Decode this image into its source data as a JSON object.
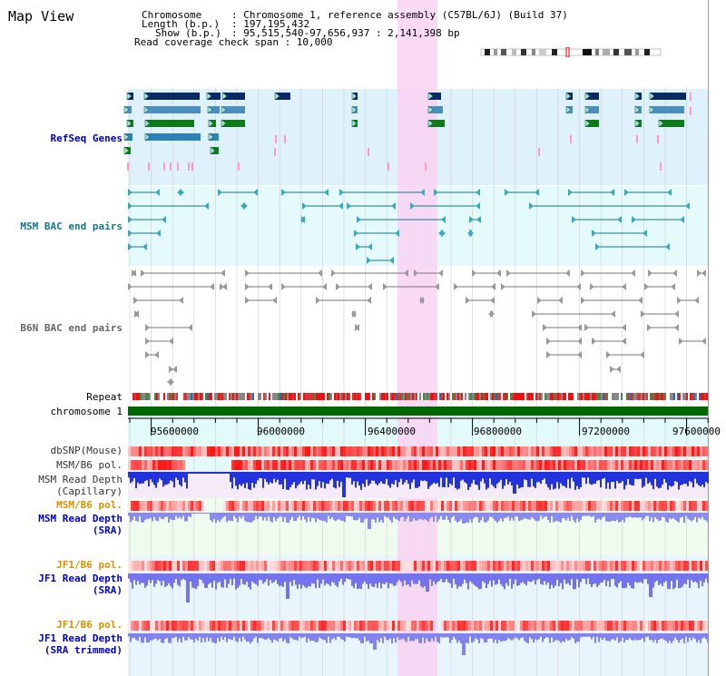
{
  "app": {
    "title": "Map View"
  },
  "header": {
    "chromosome_key": "Chromosome",
    "chromosome_value": ": Chromosome 1, reference assembly (C57BL/6J) (Build 37)",
    "length_key": "Length (b.p.)",
    "length_value": ": 197,195,432",
    "show_key": "Show (b.p.)",
    "show_value": ": 95,515,540-97,656,937 : 2,141,398 bp",
    "coverage_span": "Read coverage check span : 10,000"
  },
  "tracks": {
    "refseq": "RefSeq Genes",
    "msm_bac": "MSM BAC end pairs",
    "b6n_bac": "B6N BAC end pairs",
    "repeat": "Repeat",
    "chromosome": "chromosome 1",
    "dbsnp": "dbSNP(Mouse)",
    "msm_b6_pol_1": "MSM/B6 pol.",
    "msm_read_depth_cap_1": "MSM Read Depth",
    "msm_read_depth_cap_2": "(Capillary)",
    "msm_b6_pol_2": "MSM/B6 pol.",
    "msm_read_depth_sra_1": "MSM Read Depth",
    "msm_read_depth_sra_2": "(SRA)",
    "jf1_b6_pol_1": "JF1/B6 pol.",
    "jf1_read_depth_sra_1": "JF1 Read Depth",
    "jf1_read_depth_sra_2": "(SRA)",
    "jf1_b6_pol_2": "JF1/B6 pol.",
    "jf1_read_depth_trim_1": "JF1 Read Depth",
    "jf1_read_depth_trim_2": "(SRA trimmed)"
  },
  "axis": {
    "ticks": [
      "95600000",
      "96000000",
      "96400000",
      "96800000",
      "97200000",
      "97600000"
    ]
  },
  "colors": {
    "refseq_bg": "#dff1fb",
    "msm_bac_bg": "#e4fafb",
    "refseq_label": "#0000aa",
    "msm_label": "#117788",
    "b6n_label": "#666666",
    "highlight": "#f9d2f2",
    "chromosome_bar": "#006600",
    "pol_label": "#d99000",
    "depth_label": "#0000cc"
  }
}
